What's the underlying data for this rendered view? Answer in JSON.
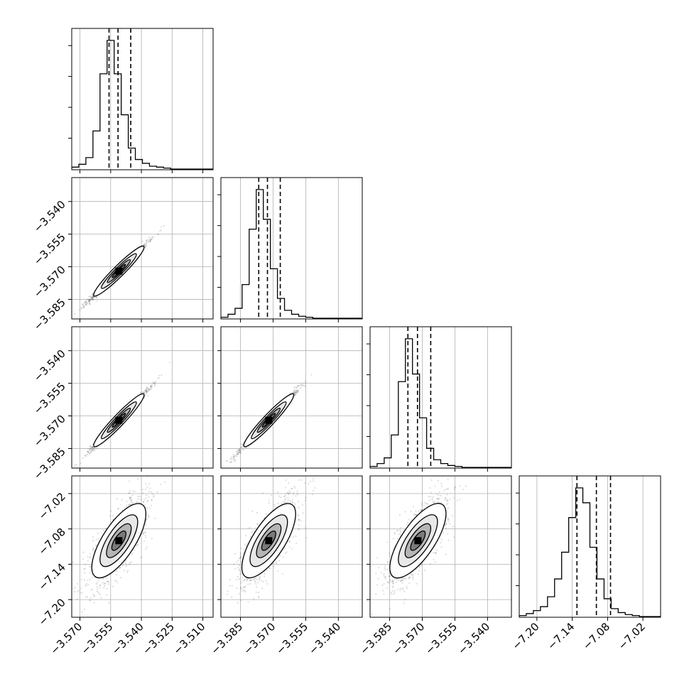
{
  "chart_data": {
    "type": "corner",
    "grid": true,
    "parameters": [
      {
        "range": [
          -3.574,
          -3.505
        ],
        "ticks": [
          -3.57,
          -3.555,
          -3.54,
          -3.525,
          -3.51
        ],
        "tick_labels": [
          "−3.570",
          "−3.555",
          "−3.540",
          "−3.525",
          "−3.510"
        ],
        "quantiles": [
          -3.5558,
          -3.5514,
          -3.5452
        ],
        "center": -3.551,
        "histogram": [
          2,
          5,
          12,
          40,
          100,
          135,
          100,
          57,
          22,
          10,
          6,
          3,
          2,
          1,
          0,
          0,
          0,
          0,
          0,
          0
        ]
      },
      {
        "range": [
          -3.594,
          -3.529
        ],
        "ticks": [
          -3.585,
          -3.57,
          -3.555,
          -3.54
        ],
        "tick_labels": [
          "−3.585",
          "−3.570",
          "−3.555",
          "−3.540"
        ],
        "quantiles": [
          -3.5766,
          -3.5726,
          -3.5667
        ],
        "center": -3.572,
        "histogram": [
          1,
          4,
          10,
          34,
          90,
          130,
          100,
          50,
          20,
          8,
          4,
          2,
          1,
          0,
          0,
          0,
          0,
          0,
          0,
          0
        ]
      },
      {
        "range": [
          -3.594,
          -3.529
        ],
        "ticks": [
          -3.585,
          -3.57,
          -3.555,
          -3.54
        ],
        "tick_labels": [
          "−3.585",
          "−3.570",
          "−3.555",
          "−3.540"
        ],
        "quantiles": [
          -3.5766,
          -3.5722,
          -3.5661
        ],
        "center": -3.572,
        "histogram": [
          1,
          4,
          10,
          34,
          90,
          135,
          98,
          52,
          20,
          8,
          4,
          2,
          1,
          0,
          0,
          0,
          0,
          0,
          0,
          0
        ]
      },
      {
        "range": [
          -7.23,
          -6.99
        ],
        "ticks": [
          -7.2,
          -7.14,
          -7.08,
          -7.02
        ],
        "tick_labels": [
          "−7.20",
          "−7.14",
          "−7.08",
          "−7.02"
        ],
        "quantiles": [
          -7.132,
          -7.099,
          -7.075
        ],
        "center": -7.1,
        "histogram": [
          1,
          3,
          6,
          10,
          20,
          38,
          65,
          100,
          130,
          115,
          70,
          38,
          18,
          8,
          4,
          2,
          1,
          0,
          0,
          0
        ]
      }
    ],
    "correlations": {
      "1-0": 0.99,
      "2-0": 0.99,
      "2-1": 0.99,
      "3-0": 0.75,
      "3-1": 0.75,
      "3-2": 0.75
    }
  }
}
